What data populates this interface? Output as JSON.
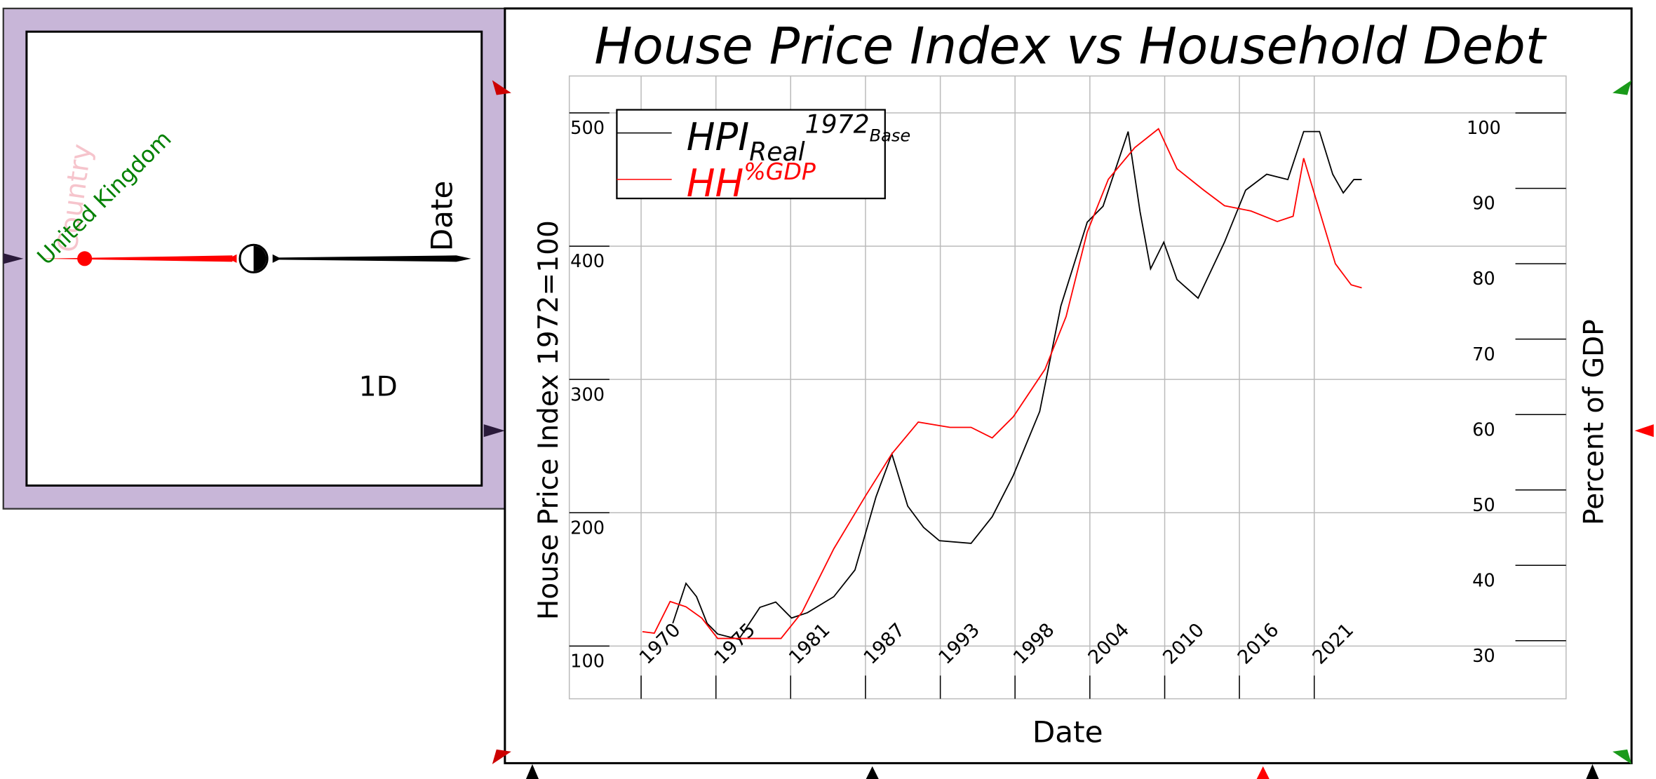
{
  "panel": {
    "country_label": "Country",
    "country_value": "United Kingdom",
    "axis_label": "Date",
    "rank": "1D"
  },
  "chart_data": {
    "type": "line",
    "title": "House Price Index vs Household Debt",
    "x_label": "Date",
    "y_label": "House Price Index 1972=100",
    "y2_label": "Percent of GDP",
    "xlim": [
      1964.56,
      2040.08
    ],
    "ylim": [
      60.4,
      527.7
    ],
    "y2lim": [
      22.3,
      104.9
    ],
    "xticks": [
      {
        "value": 1970,
        "label": "1970"
      },
      {
        "value": 1975.67,
        "label": "1975"
      },
      {
        "value": 1981.33,
        "label": "1981"
      },
      {
        "value": 1987,
        "label": "1987"
      },
      {
        "value": 1992.67,
        "label": "1993"
      },
      {
        "value": 1998.33,
        "label": "1998"
      },
      {
        "value": 2004,
        "label": "2004"
      },
      {
        "value": 2009.67,
        "label": "2010"
      },
      {
        "value": 2015.33,
        "label": "2016"
      },
      {
        "value": 2021,
        "label": "2021"
      }
    ],
    "yticks": [
      100,
      200,
      300,
      400,
      500
    ],
    "y2ticks": [
      30,
      40,
      50,
      60,
      70,
      80,
      90,
      100
    ],
    "grid": true,
    "legend": "upper left",
    "series": [
      {
        "name": "HPI",
        "name_sub": "Real",
        "name_sup": "1972",
        "name_sup_sub": "Base",
        "color": "#000000",
        "axis": "y",
        "x": [
          1972.4,
          1973.4,
          1974.2,
          1975,
          1975.8,
          1977.4,
          1979,
          1980.2,
          1981.4,
          1982.6,
          1984.6,
          1986.2,
          1987.8,
          1989,
          1990.2,
          1991.4,
          1992.6,
          1995,
          1996.6,
          1998.2,
          2000.2,
          2001.8,
          2003.8,
          2005,
          2006.9,
          2007.8,
          2008.6,
          2009.6,
          2010.6,
          2012.2,
          2014.2,
          2015.8,
          2017.4,
          2019,
          2020.2,
          2021.4,
          2022.4,
          2023.2,
          2024,
          2024.6
        ],
        "values": [
          117,
          147,
          137,
          117,
          109,
          105,
          129,
          133,
          121,
          125,
          137,
          157,
          212,
          244,
          205,
          189,
          179,
          177,
          197,
          228,
          276,
          355,
          418,
          430,
          486,
          426,
          383,
          403,
          375,
          361,
          403,
          442,
          454,
          450,
          486,
          486,
          454,
          440,
          450,
          450
        ]
      },
      {
        "name": "HH",
        "name_sup": "%GDP",
        "color": "#ff0000",
        "axis": "y2",
        "x": [
          1970.1,
          1971,
          1972.2,
          1973.4,
          1974.6,
          1975.8,
          1978.2,
          1980.6,
          1982.2,
          1984.6,
          1987,
          1989,
          1991,
          1993.4,
          1995,
          1996.6,
          1998.2,
          2000.6,
          2002.2,
          2003.8,
          2005.4,
          2007.4,
          2009.2,
          2010.6,
          2012.6,
          2014.2,
          2016.2,
          2018.2,
          2019.4,
          2020.2,
          2021.4,
          2022.6,
          2023.8,
          2024.6
        ],
        "values": [
          31.2,
          31,
          35.2,
          34.5,
          33,
          30.3,
          30.3,
          30.3,
          33.8,
          42.2,
          49.2,
          54.8,
          59,
          58.3,
          58.3,
          56.9,
          59.7,
          66,
          73,
          84.2,
          91.2,
          95.4,
          97.9,
          92.6,
          89.8,
          87.7,
          87,
          85.6,
          86.3,
          94,
          87,
          80,
          77.2,
          76.8
        ]
      }
    ]
  }
}
